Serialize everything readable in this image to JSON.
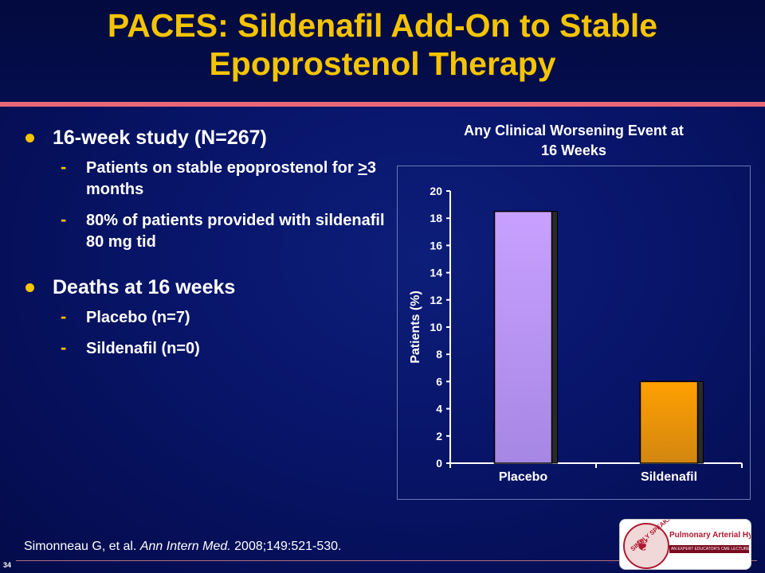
{
  "slide": {
    "title_line1": "PACES: Sildenafil Add-On to Stable",
    "title_line2": "Epoprostenol Therapy",
    "page_number": "34"
  },
  "bullets": [
    {
      "text": "16-week study (N=267)",
      "sub": [
        {
          "pre": "Patients on stable epoprostenol for ",
          "underlined": ">",
          "post": "3 months"
        },
        {
          "pre": "80% of patients provided with sildenafil 80 mg tid",
          "underlined": "",
          "post": ""
        }
      ]
    },
    {
      "text": "Deaths at 16 weeks",
      "sub": [
        {
          "pre": "Placebo (n=7)",
          "underlined": "",
          "post": ""
        },
        {
          "pre": "Sildenafil (n=0)",
          "underlined": "",
          "post": ""
        }
      ]
    }
  ],
  "citation": {
    "authors": "Simonneau G, et al. ",
    "journal": "Ann Intern Med.",
    "details": " 2008;149:521-530."
  },
  "logo": {
    "arc_text": "SIMPLY SPEAKING",
    "name": "Pulmonary Arterial Hypertension",
    "tagline": "AN EXPERT EDUCATOR'S CME LECTURE SERIES"
  },
  "chart_data": {
    "type": "bar",
    "title": "Any Clinical Worsening Event at 16 Weeks",
    "title_line1": "Any Clinical Worsening Event at",
    "title_line2": "16 Weeks",
    "categories": [
      "Placebo",
      "Sildenafil"
    ],
    "values": [
      18.5,
      6
    ],
    "colors": [
      "#c9a0ff",
      "#ffa000"
    ],
    "xlabel": "",
    "ylabel": "Patients (%)",
    "ylim": [
      0,
      20
    ],
    "yticks": [
      0,
      2,
      4,
      6,
      8,
      10,
      12,
      14,
      16,
      18,
      20
    ],
    "grid": false,
    "legend": "none"
  }
}
